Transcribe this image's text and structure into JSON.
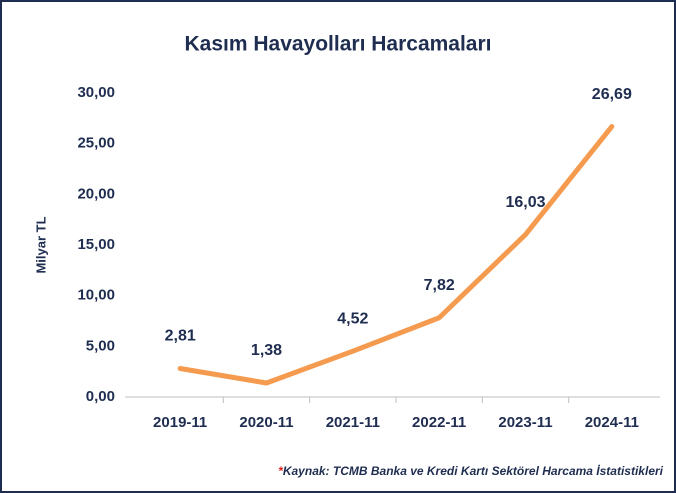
{
  "chart_data": {
    "type": "line",
    "title": "Kasım Havayolları Harcamaları",
    "y_label": "Milyar TL",
    "categories": [
      "2019-11",
      "2020-11",
      "2021-11",
      "2022-11",
      "2023-11",
      "2024-11"
    ],
    "values": [
      2.81,
      1.38,
      4.52,
      7.82,
      16.03,
      26.69
    ],
    "value_labels": [
      "2,81",
      "1,38",
      "4,52",
      "7,82",
      "16,03",
      "26,69"
    ],
    "color": "#f59b4f",
    "ylim": [
      0,
      30
    ],
    "yticks": [
      {
        "value": 0,
        "label": "0,00"
      },
      {
        "value": 5,
        "label": "5,00"
      },
      {
        "value": 10,
        "label": "10,00"
      },
      {
        "value": 15,
        "label": "15,00"
      },
      {
        "value": 20,
        "label": "20,00"
      },
      {
        "value": 25,
        "label": "25,00"
      },
      {
        "value": 30,
        "label": "30,00"
      }
    ],
    "grid": false,
    "note_marker": "*",
    "note": "Kaynak: TCMB Banka ve Kredi Kartı Sektörel Harcama İstatistikleri"
  }
}
